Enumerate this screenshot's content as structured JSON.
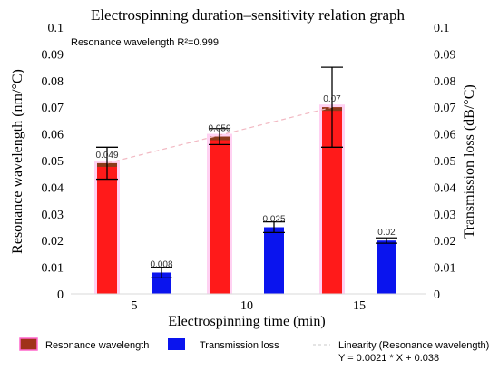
{
  "chart_data": {
    "type": "bar",
    "title": "Electrospinning duration–sensitivity relation graph",
    "annotation": "Resonance wavelength R²=0.999",
    "xlabel": "Electrospinning time (min)",
    "ylabel_left": "Resonance wavelength (nm/°C)",
    "ylabel_right": "Transmission loss (dB/°C)",
    "categories": [
      "5",
      "10",
      "15"
    ],
    "ylim": [
      0,
      0.1
    ],
    "ytick_step": 0.01,
    "yticks": [
      "0",
      "0.01",
      "0.02",
      "0.03",
      "0.04",
      "0.05",
      "0.06",
      "0.07",
      "0.08",
      "0.09",
      "0.1"
    ],
    "grid": false,
    "legend_position": "bottom",
    "series": [
      {
        "name": "Resonance wavelength",
        "axis": "left",
        "color": "#ff1a1a",
        "edge_color": "#8b3a1a",
        "values": [
          0.049,
          0.059,
          0.07
        ],
        "labels": [
          "0.049",
          "0.059",
          "0.07"
        ],
        "error": [
          0.006,
          0.003,
          0.015
        ]
      },
      {
        "name": "Transmission loss",
        "axis": "right",
        "color": "#0a14ee",
        "values": [
          0.008,
          0.025,
          0.02
        ],
        "labels": [
          "0.008",
          "0.025",
          "0.02"
        ],
        "error": [
          0.002,
          0.002,
          0.001
        ]
      }
    ],
    "trendline": {
      "name": "Linearity (Resonance wavelength)",
      "equation": "Y = 0.0021 * X + 0.038",
      "style": "dashed",
      "color": "#f2b8c2"
    }
  }
}
